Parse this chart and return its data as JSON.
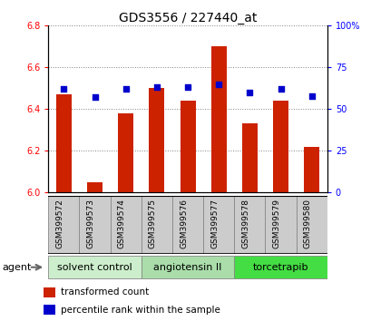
{
  "title": "GDS3556 / 227440_at",
  "samples": [
    "GSM399572",
    "GSM399573",
    "GSM399574",
    "GSM399575",
    "GSM399576",
    "GSM399577",
    "GSM399578",
    "GSM399579",
    "GSM399580"
  ],
  "bar_values": [
    6.47,
    6.05,
    6.38,
    6.5,
    6.44,
    6.7,
    6.33,
    6.44,
    6.22
  ],
  "bar_base": 6.0,
  "percentile_values": [
    62,
    57,
    62,
    63,
    63,
    65,
    60,
    62,
    58
  ],
  "bar_color": "#cc2200",
  "dot_color": "#0000cc",
  "ylim_left": [
    6.0,
    6.8
  ],
  "ylim_right": [
    0,
    100
  ],
  "yticks_left": [
    6.0,
    6.2,
    6.4,
    6.6,
    6.8
  ],
  "yticks_right": [
    0,
    25,
    50,
    75,
    100
  ],
  "groups": [
    {
      "label": "solvent control",
      "indices": [
        0,
        1,
        2
      ],
      "color": "#cceecc"
    },
    {
      "label": "angiotensin II",
      "indices": [
        3,
        4,
        5
      ],
      "color": "#aaddaa"
    },
    {
      "label": "torcetrapib",
      "indices": [
        6,
        7,
        8
      ],
      "color": "#44dd44"
    }
  ],
  "sample_cell_color": "#cccccc",
  "sample_cell_edge_color": "#888888",
  "legend_bar_label": "transformed count",
  "legend_dot_label": "percentile rank within the sample",
  "agent_label": "agent",
  "bar_width": 0.5,
  "title_fontsize": 10,
  "tick_fontsize": 7,
  "sample_fontsize": 6.5,
  "group_label_fontsize": 8,
  "legend_fontsize": 7.5
}
